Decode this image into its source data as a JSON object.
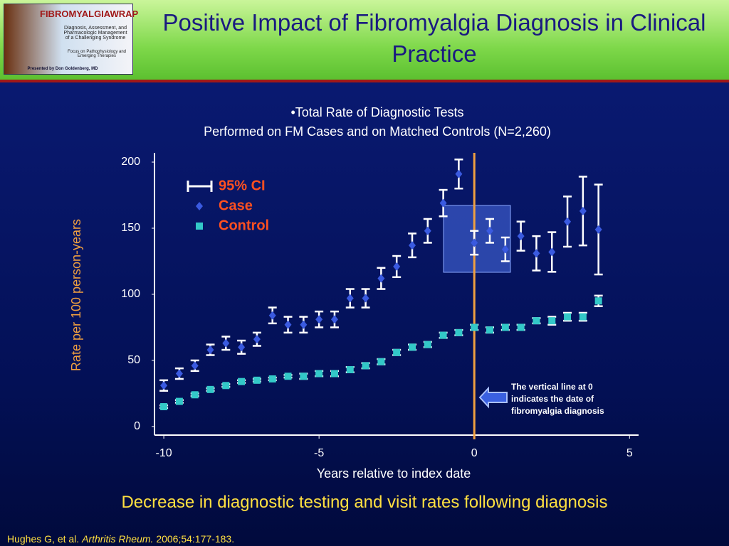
{
  "header": {
    "title": "Positive Impact of Fibromyalgia Diagnosis in Clinical Practice",
    "logo": {
      "brand": "FIBROMYALGIAWRAP",
      "tagline": "Diagnosis, Assessment, and Pharmacologic Management of a Challenging Syndrome",
      "focus": "Focus on Pathophysiology and Emerging Therapies",
      "presenter": "Presented by Don Goldenberg, MD"
    }
  },
  "chart_data": {
    "type": "scatter",
    "title": "•Total Rate of Diagnostic Tests",
    "subtitle": "Performed on FM Cases and on Matched Controls (N=2,260)",
    "x_label": "Years relative to index date",
    "y_label": "Rate per 100 person-years",
    "ci_label": "95% CI",
    "x": [
      -10,
      -9.5,
      -9,
      -8.5,
      -8,
      -7.5,
      -7,
      -6.5,
      -6,
      -5.5,
      -5,
      -4.5,
      -4,
      -3.5,
      -3,
      -2.5,
      -2,
      -1.5,
      -1,
      -0.5,
      0,
      0.5,
      1,
      1.5,
      2,
      2.5,
      3,
      3.5,
      4
    ],
    "series": [
      {
        "name": "Case",
        "color": "#3a5ae0",
        "marker": "diamond",
        "values": [
          31,
          40,
          46,
          58,
          63,
          60,
          66,
          84,
          77,
          77,
          81,
          81,
          97,
          97,
          112,
          121,
          137,
          148,
          169,
          191,
          139,
          148,
          134,
          144,
          131,
          132,
          155,
          163,
          149
        ],
        "errors": [
          4,
          4,
          4,
          4,
          5,
          5,
          5,
          6,
          6,
          6,
          6,
          6,
          7,
          7,
          8,
          8,
          9,
          9,
          10,
          11,
          9,
          9,
          9,
          11,
          13,
          15,
          19,
          26,
          34
        ]
      },
      {
        "name": "Control",
        "color": "#33c8c8",
        "marker": "square",
        "values": [
          15,
          19,
          24,
          28,
          31,
          34,
          35,
          36,
          38,
          38,
          40,
          40,
          43,
          46,
          49,
          56,
          60,
          62,
          69,
          71,
          75,
          73,
          75,
          75,
          80,
          80,
          83,
          83,
          95
        ],
        "errors": [
          1,
          1,
          1,
          1,
          1,
          1,
          1,
          1,
          1,
          2,
          2,
          2,
          2,
          2,
          2,
          2,
          2,
          2,
          2,
          2,
          2,
          2,
          2,
          2,
          2,
          3,
          3,
          3,
          4
        ]
      }
    ],
    "xlim": [
      -10.3,
      5.2
    ],
    "xticks": [
      -10,
      -5,
      0,
      5
    ],
    "ylim": [
      -6.5,
      207
    ],
    "yticks": [
      0,
      50,
      100,
      150,
      200
    ],
    "reference_line_x": 0,
    "reference_line_color": "#f0a040",
    "annotation_lines": [
      "The vertical line at 0",
      "indicates the date of",
      "fibromyalgia diagnosis"
    ]
  },
  "caption": "Decrease in diagnostic testing and visit rates following diagnosis",
  "citation": {
    "authors": "Hughes G, et al.",
    "journal": "Arthritis Rheum.",
    "details": "2006;54:177-183."
  }
}
